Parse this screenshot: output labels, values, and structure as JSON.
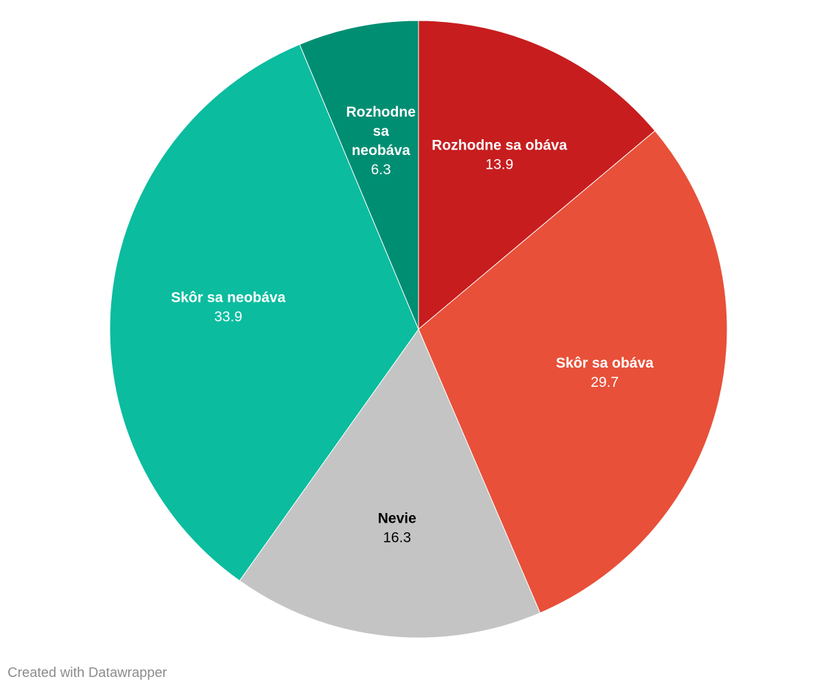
{
  "chart_data": {
    "type": "pie",
    "categories": [
      "Rozhodne sa obáva",
      "Skôr sa obáva",
      "Nevie",
      "Skôr sa neobáva",
      "Rozhodne sa neobáva"
    ],
    "values": [
      13.9,
      29.7,
      16.3,
      33.9,
      6.3
    ],
    "value_labels": [
      "13.9",
      "29.7",
      "16.3",
      "33.9",
      "6.3"
    ],
    "label_lines": [
      [
        "Rozhodne sa obáva"
      ],
      [
        "Skôr sa obáva"
      ],
      [
        "Nevie"
      ],
      [
        "Skôr sa neobáva"
      ],
      [
        "Rozhodne",
        "sa",
        "neobáva"
      ]
    ],
    "colors": [
      "#c71d1f",
      "#e85039",
      "#c4c4c4",
      "#0bbc9f",
      "#008e72"
    ],
    "label_colors": [
      "#ffffff",
      "#ffffff",
      "#000000",
      "#ffffff",
      "#ffffff"
    ],
    "start_angle": "12 o'clock",
    "direction": "clockwise",
    "title": "",
    "legend": "none"
  },
  "footer": {
    "credit": "Created with Datawrapper"
  }
}
